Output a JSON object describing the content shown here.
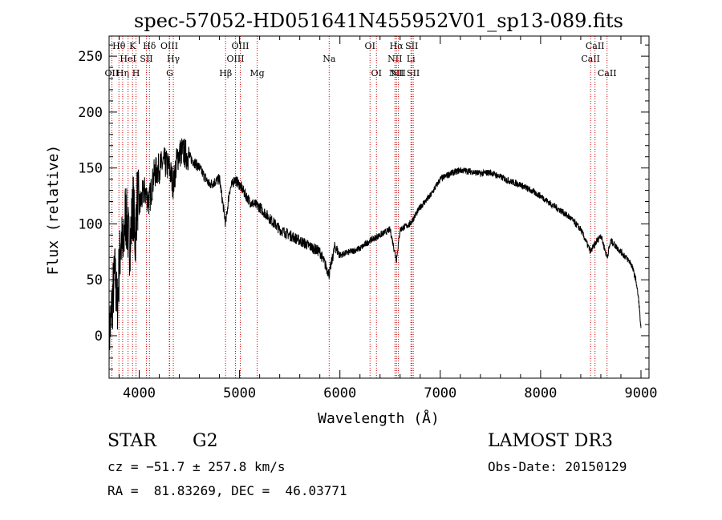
{
  "chart_data": {
    "type": "line",
    "title": "spec-57052-HD051641N455952V01_sp13-089.fits",
    "xlabel": "Wavelength (Å)",
    "ylabel": "Flux (relative)",
    "xlim": [
      3700,
      9080
    ],
    "ylim": [
      -38,
      268
    ],
    "xticks": [
      4000,
      5000,
      6000,
      7000,
      8000,
      9000
    ],
    "yticks": [
      0,
      50,
      100,
      150,
      200,
      250
    ],
    "series": [
      {
        "name": "flux",
        "x": [
          3700,
          3720,
          3740,
          3760,
          3780,
          3800,
          3820,
          3840,
          3860,
          3880,
          3900,
          3920,
          3940,
          3960,
          3980,
          4000,
          4050,
          4100,
          4150,
          4200,
          4250,
          4300,
          4340,
          4380,
          4420,
          4500,
          4600,
          4700,
          4800,
          4861,
          4900,
          4950,
          5000,
          5100,
          5200,
          5300,
          5400,
          5500,
          5600,
          5700,
          5800,
          5893,
          5950,
          6000,
          6100,
          6200,
          6300,
          6400,
          6500,
          6563,
          6600,
          6700,
          6800,
          6900,
          7000,
          7100,
          7200,
          7300,
          7400,
          7500,
          7600,
          7700,
          7800,
          7900,
          8000,
          8100,
          8200,
          8300,
          8400,
          8498,
          8542,
          8600,
          8662,
          8700,
          8800,
          8900,
          8950,
          8980,
          9000
        ],
        "y": [
          0,
          15,
          40,
          55,
          25,
          60,
          90,
          70,
          110,
          100,
          80,
          95,
          120,
          85,
          125,
          115,
          130,
          120,
          145,
          150,
          155,
          150,
          135,
          160,
          165,
          160,
          150,
          135,
          140,
          100,
          130,
          140,
          135,
          120,
          115,
          105,
          95,
          90,
          85,
          80,
          75,
          55,
          80,
          72,
          75,
          78,
          85,
          90,
          95,
          68,
          95,
          100,
          115,
          125,
          140,
          145,
          148,
          147,
          145,
          146,
          142,
          138,
          135,
          130,
          125,
          118,
          112,
          105,
          95,
          75,
          82,
          90,
          70,
          85,
          75,
          65,
          50,
          30,
          5
        ]
      }
    ],
    "lines": [
      {
        "name": "OII",
        "wave": 3727,
        "row": 3
      },
      {
        "name": "Hθ",
        "wave": 3798,
        "row": 1
      },
      {
        "name": "Hη",
        "wave": 3835,
        "row": 3
      },
      {
        "name": "HeI",
        "wave": 3889,
        "row": 2
      },
      {
        "name": "K",
        "wave": 3934,
        "row": 1
      },
      {
        "name": "H",
        "wave": 3968,
        "row": 3
      },
      {
        "name": "SII",
        "wave": 4072,
        "row": 2
      },
      {
        "name": "Hδ",
        "wave": 4102,
        "row": 1
      },
      {
        "name": "OIII",
        "wave": 4300,
        "row": 1
      },
      {
        "name": "G",
        "wave": 4304,
        "row": 3
      },
      {
        "name": "Hγ",
        "wave": 4340,
        "row": 2
      },
      {
        "name": "Hβ",
        "wave": 4861,
        "row": 3
      },
      {
        "name": "OIII",
        "wave": 4959,
        "row": 2
      },
      {
        "name": "OIII",
        "wave": 5007,
        "row": 1
      },
      {
        "name": "Mg",
        "wave": 5175,
        "row": 3
      },
      {
        "name": "Na",
        "wave": 5893,
        "row": 2
      },
      {
        "name": "OI",
        "wave": 6300,
        "row": 1
      },
      {
        "name": "OI",
        "wave": 6364,
        "row": 3
      },
      {
        "name": "NII",
        "wave": 6548,
        "row": 2
      },
      {
        "name": "NII",
        "wave": 6563,
        "row": 3
      },
      {
        "name": "Hα",
        "wave": 6563,
        "row": 1
      },
      {
        "name": "NII",
        "wave": 6583,
        "row": 3
      },
      {
        "name": "Li",
        "wave": 6708,
        "row": 2
      },
      {
        "name": "SII",
        "wave": 6716,
        "row": 1
      },
      {
        "name": "SII",
        "wave": 6731,
        "row": 3
      },
      {
        "name": "CaII",
        "wave": 8498,
        "row": 2
      },
      {
        "name": "CaII",
        "wave": 8542,
        "row": 1
      },
      {
        "name": "CaII",
        "wave": 8662,
        "row": 3
      }
    ]
  },
  "info": {
    "class": "STAR",
    "subclass": "G2",
    "survey": "LAMOST DR3",
    "cz": "cz = −51.7 ± 257.8 km/s",
    "obs_date": "Obs-Date: 20150129",
    "radec": "RA =  81.83269, DEC =  46.03771"
  }
}
